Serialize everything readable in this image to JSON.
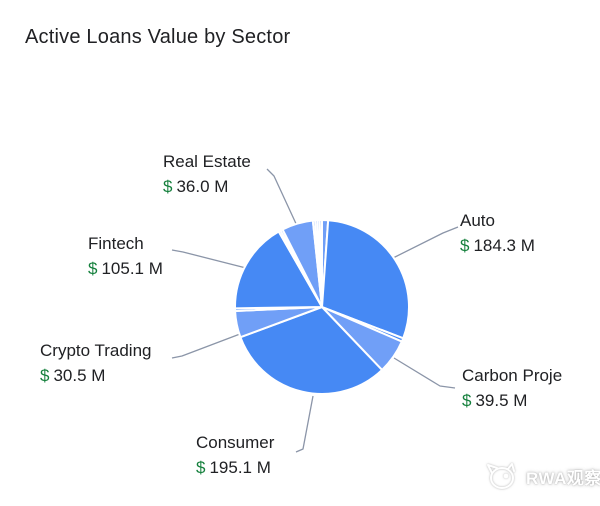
{
  "title": "Active Loans Value by Sector",
  "watermark": {
    "brand": "RWA观察"
  },
  "callouts": {
    "real_estate": {
      "name": "Real Estate",
      "currency": "$",
      "amount": "36.0 M"
    },
    "fintech": {
      "name": "Fintech",
      "currency": "$",
      "amount": "105.1 M"
    },
    "crypto_trading": {
      "name": "Crypto Trading",
      "currency": "$",
      "amount": "30.5 M"
    },
    "consumer": {
      "name": "Consumer",
      "currency": "$",
      "amount": "195.1 M"
    },
    "auto": {
      "name": "Auto",
      "currency": "$",
      "amount": "184.3 M"
    },
    "carbon": {
      "name": "Carbon Proje",
      "currency": "$",
      "amount": "39.5 M"
    }
  },
  "chart_data": {
    "type": "pie",
    "title": "Active Loans Value by Sector",
    "value_unit": "M",
    "currency": "$",
    "start_angle_deg": 0,
    "direction": "clockwise",
    "legend_position": "callout-labels",
    "sectors": [
      {
        "label": "Consumer",
        "value": 195.1
      },
      {
        "label": "Auto",
        "value": 184.3
      },
      {
        "label": "Fintech",
        "value": 105.1
      },
      {
        "label": "Carbon Proje",
        "value": 39.5
      },
      {
        "label": "Real Estate",
        "value": 36.0
      },
      {
        "label": "Crypto Trading",
        "value": 30.5
      }
    ],
    "slices": [
      {
        "label": "",
        "value": 7.0,
        "color": "#709ff7"
      },
      {
        "label": "Auto",
        "value": 184.3,
        "color": "#4689f4"
      },
      {
        "label": "",
        "value": 4.0,
        "color": "#4689f4"
      },
      {
        "label": "Carbon Proje",
        "value": 39.5,
        "color": "#709ff7"
      },
      {
        "label": "Consumer",
        "value": 195.1,
        "color": "#4689f4"
      },
      {
        "label": "Crypto Trading",
        "value": 30.5,
        "color": "#709ff7"
      },
      {
        "label": "",
        "value": 3.0,
        "color": "#4689f4"
      },
      {
        "label": "Fintech",
        "value": 105.1,
        "color": "#4689f4"
      },
      {
        "label": "",
        "value": 2.5,
        "color": "#709ff7"
      },
      {
        "label": "",
        "value": 2.5,
        "color": "#4689f4"
      },
      {
        "label": "Real Estate",
        "value": 36.0,
        "color": "#709ff7"
      },
      {
        "label": "",
        "value": 2.6,
        "color": "#4689f4"
      },
      {
        "label": "",
        "value": 2.6,
        "color": "#709ff7"
      },
      {
        "label": "",
        "value": 2.6,
        "color": "#4689f4"
      },
      {
        "label": "",
        "value": 2.6,
        "color": "#709ff7"
      }
    ],
    "colors": {
      "slice_primary": "#4689f4",
      "slice_light": "#709ff7",
      "leader_line": "#8b95a8",
      "currency_green": "#15803d",
      "text": "#202124"
    }
  }
}
